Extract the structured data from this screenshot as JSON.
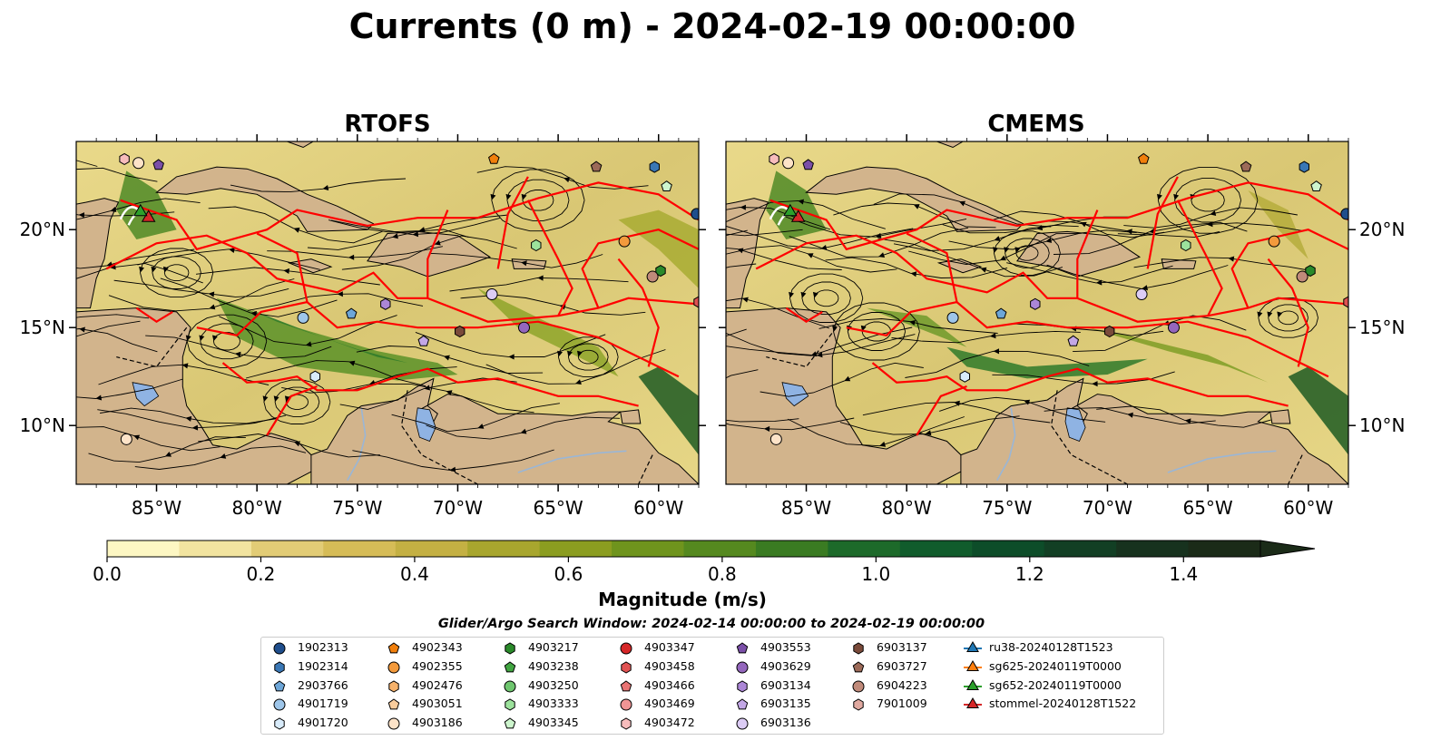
{
  "figure": {
    "title": "Currents (0 m) - 2024-02-19 00:00:00",
    "panels": [
      {
        "title": "RTOFS"
      },
      {
        "title": "CMEMS"
      }
    ],
    "lat_ticks": [
      "10°N",
      "15°N",
      "20°N"
    ],
    "lon_ticks": [
      "85°W",
      "80°W",
      "75°W",
      "70°W",
      "65°W",
      "60°W"
    ],
    "colors": {
      "land": "#d2b48c",
      "lake": "#8fb3e3",
      "river": "#9ab6d6",
      "eez": "#ff0000",
      "streamline": "#000000"
    }
  },
  "colorbar": {
    "label": "Magnitude (m/s)",
    "ticks": [
      "0.0",
      "0.2",
      "0.4",
      "0.6",
      "0.8",
      "1.0",
      "1.2",
      "1.4"
    ],
    "range": [
      0,
      1.5
    ],
    "extend": "max",
    "colors": [
      "#fdf7c3",
      "#f2e4a0",
      "#e2cc76",
      "#d6bc57",
      "#c4b043",
      "#a8a62e",
      "#8b9d20",
      "#6f941d",
      "#55891f",
      "#3a7b22",
      "#1d6a2a",
      "#115c2c",
      "#0d4d29",
      "#123f24",
      "#17321e",
      "#1b2b18"
    ]
  },
  "search_window": "Glider/Argo Search Window: 2024-02-14 00:00:00 to 2024-02-19 00:00:00",
  "legend": {
    "columns": [
      [
        {
          "label": "1902313",
          "marker": "circle",
          "color": "#1f4e8c"
        },
        {
          "label": "1902314",
          "marker": "hexagon",
          "color": "#3a77b5"
        },
        {
          "label": "2903766",
          "marker": "pentagon",
          "color": "#6da6d8"
        },
        {
          "label": "4901719",
          "marker": "circle",
          "color": "#9ec6ea"
        },
        {
          "label": "4901720",
          "marker": "hexagon",
          "color": "#d8ebfa"
        }
      ],
      [
        {
          "label": "4902343",
          "marker": "pentagon",
          "color": "#f17f0c"
        },
        {
          "label": "4902355",
          "marker": "circle",
          "color": "#f39a3c"
        },
        {
          "label": "4902476",
          "marker": "hexagon",
          "color": "#f6b26b"
        },
        {
          "label": "4903051",
          "marker": "pentagon",
          "color": "#f9cc9c"
        },
        {
          "label": "4903186",
          "marker": "circle",
          "color": "#fde3c8"
        }
      ],
      [
        {
          "label": "4903217",
          "marker": "hexagon",
          "color": "#2a8a2a"
        },
        {
          "label": "4903238",
          "marker": "pentagon",
          "color": "#41a541"
        },
        {
          "label": "4903250",
          "marker": "circle",
          "color": "#6fc66f"
        },
        {
          "label": "4903333",
          "marker": "hexagon",
          "color": "#9ce29c"
        },
        {
          "label": "4903345",
          "marker": "pentagon",
          "color": "#cdf5cd"
        }
      ],
      [
        {
          "label": "4903347",
          "marker": "circle",
          "color": "#d62728"
        },
        {
          "label": "4903458",
          "marker": "hexagon",
          "color": "#e05252"
        },
        {
          "label": "4903466",
          "marker": "pentagon",
          "color": "#e87373"
        },
        {
          "label": "4903469",
          "marker": "circle",
          "color": "#f09595"
        },
        {
          "label": "4903472",
          "marker": "hexagon",
          "color": "#f7bcbc"
        }
      ],
      [
        {
          "label": "4903553",
          "marker": "pentagon",
          "color": "#7b4fa8"
        },
        {
          "label": "4903629",
          "marker": "circle",
          "color": "#9467bd"
        },
        {
          "label": "6903134",
          "marker": "hexagon",
          "color": "#ab86d6"
        },
        {
          "label": "6903135",
          "marker": "pentagon",
          "color": "#c3a7e6"
        },
        {
          "label": "6903136",
          "marker": "circle",
          "color": "#dcccf5"
        }
      ],
      [
        {
          "label": "6903137",
          "marker": "hexagon",
          "color": "#7a4a3a"
        },
        {
          "label": "6903727",
          "marker": "pentagon",
          "color": "#9c6a58"
        },
        {
          "label": "6904223",
          "marker": "circle",
          "color": "#c08a7a"
        },
        {
          "label": "7901009",
          "marker": "hexagon",
          "color": "#e0a9a0"
        }
      ],
      [
        {
          "label": "ru38-20240128T1523",
          "marker": "triangle-line",
          "color": "#1f77b4"
        },
        {
          "label": "sg625-20240119T0000",
          "marker": "triangle-line",
          "color": "#ff7f0e"
        },
        {
          "label": "sg652-20240119T0000",
          "marker": "triangle-line",
          "color": "#2ca02c"
        },
        {
          "label": "stommel-20240128T1522",
          "marker": "triangle-line",
          "color": "#d62728"
        }
      ]
    ]
  },
  "map_markers": [
    {
      "label": "4903472",
      "lon": -86.6,
      "lat": 23.6
    },
    {
      "label": "4903186",
      "lon": -85.9,
      "lat": 23.4
    },
    {
      "label": "4903553",
      "lon": -84.9,
      "lat": 23.3
    },
    {
      "label": "4902343",
      "lon": -68.2,
      "lat": 23.6
    },
    {
      "label": "6903727",
      "lon": -63.1,
      "lat": 23.2
    },
    {
      "label": "1902314",
      "lon": -60.2,
      "lat": 23.2
    },
    {
      "label": "4903345",
      "lon": -59.6,
      "lat": 22.2
    },
    {
      "label": "1902313",
      "lon": -58.1,
      "lat": 20.8
    },
    {
      "label": "4902355",
      "lon": -61.7,
      "lat": 19.4
    },
    {
      "label": "4903333",
      "lon": -66.1,
      "lat": 19.2
    },
    {
      "label": "4903217",
      "lon": -59.9,
      "lat": 17.9
    },
    {
      "label": "6904223",
      "lon": -60.3,
      "lat": 17.6
    },
    {
      "label": "6903136",
      "lon": -68.3,
      "lat": 16.7
    },
    {
      "label": "6903134",
      "lon": -73.6,
      "lat": 16.2
    },
    {
      "label": "2903766",
      "lon": -75.3,
      "lat": 15.7
    },
    {
      "label": "4901719",
      "lon": -77.7,
      "lat": 15.5
    },
    {
      "label": "4903629",
      "lon": -66.7,
      "lat": 15.0
    },
    {
      "label": "6903137",
      "lon": -69.9,
      "lat": 14.8
    },
    {
      "label": "6903135",
      "lon": -71.7,
      "lat": 14.3
    },
    {
      "label": "4901720",
      "lon": -77.1,
      "lat": 12.5
    },
    {
      "label": "4903186",
      "lon": -86.5,
      "lat": 9.3
    },
    {
      "label": "4903458",
      "lon": -58.0,
      "lat": 16.3
    }
  ],
  "gliders": [
    {
      "label": "stommel-20240128T1522",
      "lon": -85.4,
      "lat": 20.6
    },
    {
      "label": "sg652-20240119T0000",
      "lon": -85.8,
      "lat": 20.9
    }
  ]
}
